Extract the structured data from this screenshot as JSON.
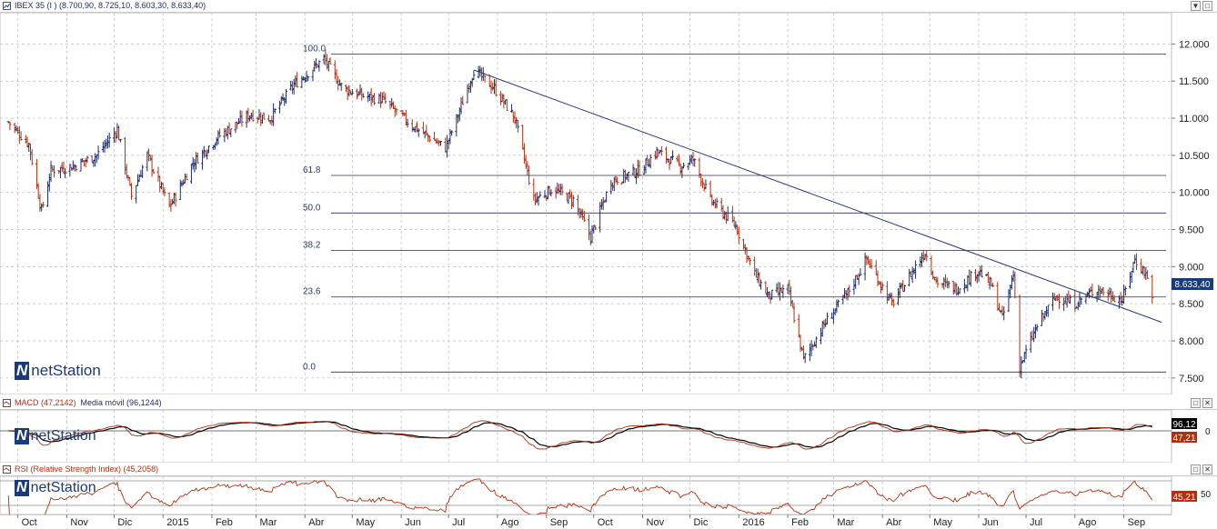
{
  "main_panel": {
    "title": "IBEX 35 (I ) (8.700,90, 8.725,10, 8.603,30, 8.633,40)",
    "last_value": "8.633,40",
    "brand": "netStation"
  },
  "macd_panel": {
    "title_a": "MACD (47,2142)",
    "title_b": "Media móvil (96,1244)",
    "value_signal": "96,12",
    "value_macd": "47,21",
    "zero_label": "0",
    "brand": "netStation"
  },
  "rsi_panel": {
    "title": "RSI (Relative Strength Index) (45,2058)",
    "value": "45,21",
    "level_label": "50",
    "brand": "netStation"
  },
  "window_buttons": {
    "minimize": "▼",
    "maximize": "□",
    "close": "✕"
  },
  "colors": {
    "up_bar": "#1b2c6a",
    "down_bar": "#b03010",
    "trendline": "#2a3a7a",
    "fib_line": "#2a2a5a",
    "macd_line": "#b03010",
    "signal_line": "#000000",
    "rsi_line": "#b03010",
    "price_tag_bg": "#1b3a78",
    "grid": "#bdbdbd"
  },
  "chart_data": {
    "type": "ohlc",
    "ylim": [
      7400,
      12250
    ],
    "y_ticks": [
      "12.000",
      "11.500",
      "11.000",
      "10.500",
      "10.000",
      "9.500",
      "9.000",
      "8.500",
      "8.000",
      "7.500"
    ],
    "y_tick_values": [
      12000,
      11500,
      11000,
      10500,
      10000,
      9500,
      9000,
      8500,
      8000,
      7500
    ],
    "x_labels": [
      "Oct",
      "Nov",
      "Dic",
      "2015",
      "Feb",
      "Mar",
      "Abr",
      "May",
      "Jun",
      "Jul",
      "Ago",
      "Sep",
      "Oct",
      "Nov",
      "Dic",
      "2016",
      "Feb",
      "Mar",
      "Abr",
      "May",
      "Jun",
      "Jul",
      "Ago",
      "Sep"
    ],
    "price_path": [
      [
        "2014-09-25",
        10950
      ],
      [
        "2014-10-08",
        10650
      ],
      [
        "2014-10-16",
        9750
      ],
      [
        "2014-10-22",
        10300
      ],
      [
        "2014-11-05",
        10350
      ],
      [
        "2014-11-20",
        10500
      ],
      [
        "2014-12-03",
        10850
      ],
      [
        "2014-12-12",
        9950
      ],
      [
        "2014-12-22",
        10500
      ],
      [
        "2015-01-05",
        9800
      ],
      [
        "2015-01-20",
        10400
      ],
      [
        "2015-02-05",
        10750
      ],
      [
        "2015-02-25",
        11050
      ],
      [
        "2015-03-10",
        11000
      ],
      [
        "2015-03-25",
        11450
      ],
      [
        "2015-04-13",
        11800
      ],
      [
        "2015-04-25",
        11400
      ],
      [
        "2015-05-08",
        11300
      ],
      [
        "2015-05-20",
        11250
      ],
      [
        "2015-06-08",
        10900
      ],
      [
        "2015-06-29",
        10600
      ],
      [
        "2015-07-08",
        11100
      ],
      [
        "2015-07-17",
        11650
      ],
      [
        "2015-07-30",
        11400
      ],
      [
        "2015-08-12",
        11000
      ],
      [
        "2015-08-24",
        9900
      ],
      [
        "2015-09-05",
        10050
      ],
      [
        "2015-09-18",
        9900
      ],
      [
        "2015-09-29",
        9400
      ],
      [
        "2015-10-12",
        10150
      ],
      [
        "2015-10-30",
        10300
      ],
      [
        "2015-11-10",
        10550
      ],
      [
        "2015-11-25",
        10350
      ],
      [
        "2015-12-03",
        10450
      ],
      [
        "2015-12-14",
        9900
      ],
      [
        "2015-12-30",
        9550
      ],
      [
        "2016-01-11",
        8900
      ],
      [
        "2016-01-20",
        8600
      ],
      [
        "2016-02-01",
        8700
      ],
      [
        "2016-02-11",
        7750
      ],
      [
        "2016-02-25",
        8250
      ],
      [
        "2016-03-10",
        8650
      ],
      [
        "2016-03-22",
        9100
      ],
      [
        "2016-04-07",
        8500
      ],
      [
        "2016-04-28",
        9200
      ],
      [
        "2016-05-05",
        8800
      ],
      [
        "2016-05-18",
        8700
      ],
      [
        "2016-06-01",
        8950
      ],
      [
        "2016-06-09",
        8750
      ],
      [
        "2016-06-16",
        8300
      ],
      [
        "2016-06-23",
        8900
      ],
      [
        "2016-06-27",
        7650
      ],
      [
        "2016-07-08",
        8200
      ],
      [
        "2016-07-20",
        8600
      ],
      [
        "2016-08-01",
        8500
      ],
      [
        "2016-08-15",
        8700
      ],
      [
        "2016-08-31",
        8550
      ],
      [
        "2016-09-08",
        9100
      ],
      [
        "2016-09-15",
        8900
      ],
      [
        "2016-09-19",
        8633
      ]
    ],
    "fibonacci": {
      "high": 11866,
      "low": 7580,
      "levels": [
        {
          "label": "100.0",
          "pct": 100
        },
        {
          "label": "61.8",
          "pct": 61.8
        },
        {
          "label": "50.0",
          "pct": 50
        },
        {
          "label": "38.2",
          "pct": 38.2
        },
        {
          "label": "23.6",
          "pct": 23.6
        },
        {
          "label": "0.0",
          "pct": 0
        }
      ]
    },
    "trendline": {
      "from": [
        "2015-07-17",
        11650
      ],
      "to": [
        "2016-09-25",
        8250
      ]
    },
    "last": {
      "date": "2016-09-19",
      "open": 8700.9,
      "high": 8725.1,
      "low": 8603.3,
      "close": 8633.4
    }
  }
}
